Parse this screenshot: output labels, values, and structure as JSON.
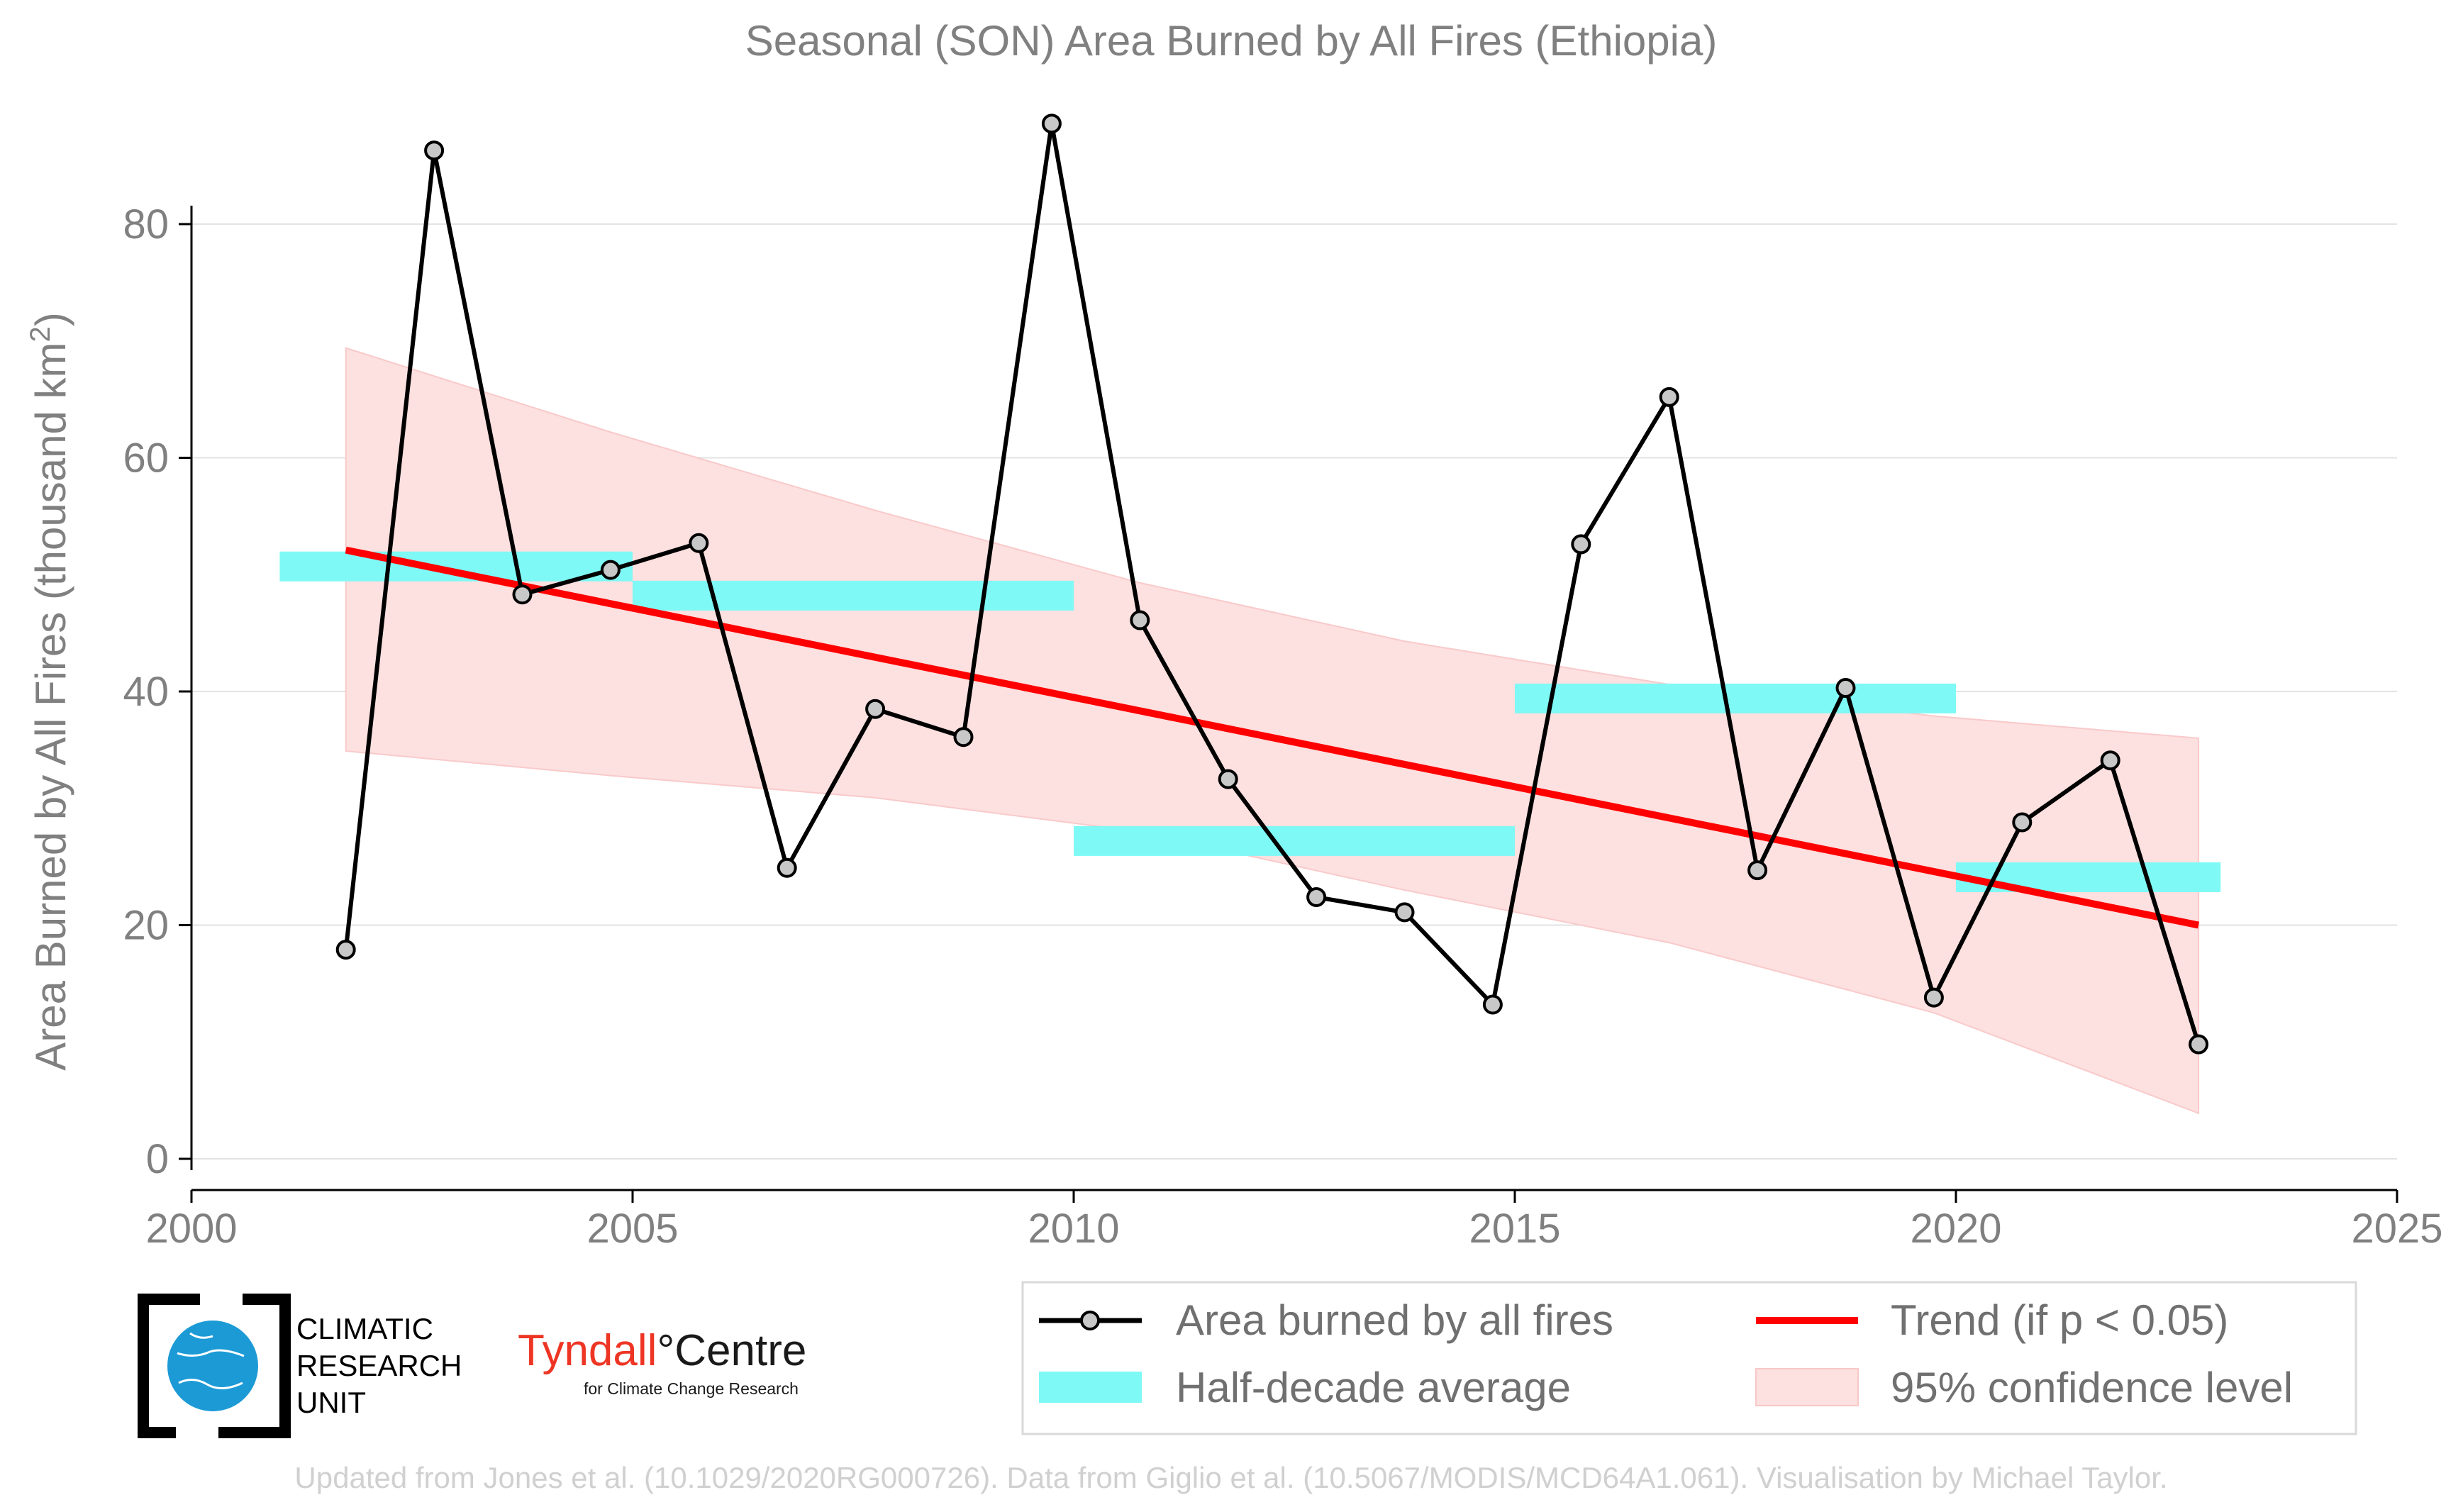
{
  "chart_data": {
    "type": "line",
    "title": "Seasonal (SON) Area Burned by All Fires (Ethiopia)",
    "ylabel": "Area Burned by All Fires (thousand km",
    "ylabel_sup": "2",
    "ylabel_close": ")",
    "xlim": [
      2000,
      2025
    ],
    "ylim": [
      -3,
      88
    ],
    "xticks": [
      2000,
      2005,
      2010,
      2015,
      2020,
      2025
    ],
    "yticks": [
      0,
      20,
      40,
      60,
      80
    ],
    "grid": "horizontal",
    "series": [
      {
        "name": "Area burned by all fires",
        "color": "#000000",
        "marker_fill": "#c8c8c8",
        "x": [
          2001.75,
          2002.75,
          2003.75,
          2004.75,
          2005.75,
          2006.75,
          2007.75,
          2008.75,
          2009.75,
          2010.75,
          2011.75,
          2012.75,
          2013.75,
          2014.75,
          2015.75,
          2016.75,
          2017.75,
          2018.75,
          2019.75,
          2020.75,
          2021.75,
          2022.75
        ],
        "y": [
          17.9,
          86.3,
          48.3,
          50.4,
          52.7,
          24.9,
          38.5,
          36.1,
          88.6,
          46.1,
          32.5,
          22.4,
          21.1,
          13.2,
          52.6,
          65.2,
          24.7,
          40.3,
          13.8,
          28.8,
          34.1,
          9.8
        ]
      }
    ],
    "half_decade_average": {
      "name": "Half-decade average",
      "color": "#7ff9f5",
      "segments": [
        {
          "x0": 2001.0,
          "x1": 2005.0,
          "y": 50.7
        },
        {
          "x0": 2005.0,
          "x1": 2010.0,
          "y": 48.2
        },
        {
          "x0": 2010.0,
          "x1": 2015.0,
          "y": 27.2
        },
        {
          "x0": 2015.0,
          "x1": 2020.0,
          "y": 39.4
        },
        {
          "x0": 2020.0,
          "x1": 2023.0,
          "y": 24.1
        }
      ]
    },
    "trend": {
      "name": "Trend (if p < 0.05)",
      "color": "#ff0000",
      "x": [
        2001.75,
        2022.75
      ],
      "y": [
        52.1,
        20.0
      ]
    },
    "confidence": {
      "name": "95% confidence level",
      "color": "#fde0e0",
      "x": [
        2001.75,
        2004.75,
        2007.75,
        2010.75,
        2013.75,
        2016.75,
        2019.75,
        2022.75
      ],
      "upper": [
        69.4,
        62.2,
        55.5,
        49.3,
        44.3,
        40.6,
        37.9,
        36.0
      ],
      "lower": [
        34.9,
        32.8,
        30.9,
        28.0,
        23.0,
        18.5,
        12.5,
        3.9
      ]
    },
    "legend_position": "bottom-right"
  },
  "logos": {
    "cru_line1": "CLIMATIC",
    "cru_line2": "RESEARCH",
    "cru_line3": "UNIT",
    "tyndall_red": "Tyndall",
    "tyndall_black": "°Centre",
    "tyndall_sub": "for Climate Change Research"
  },
  "credit": "Updated from Jones et al. (10.1029/2020RG000726). Data from Giglio et al. (10.5067/MODIS/MCD64A1.061). Visualisation by Michael Taylor."
}
